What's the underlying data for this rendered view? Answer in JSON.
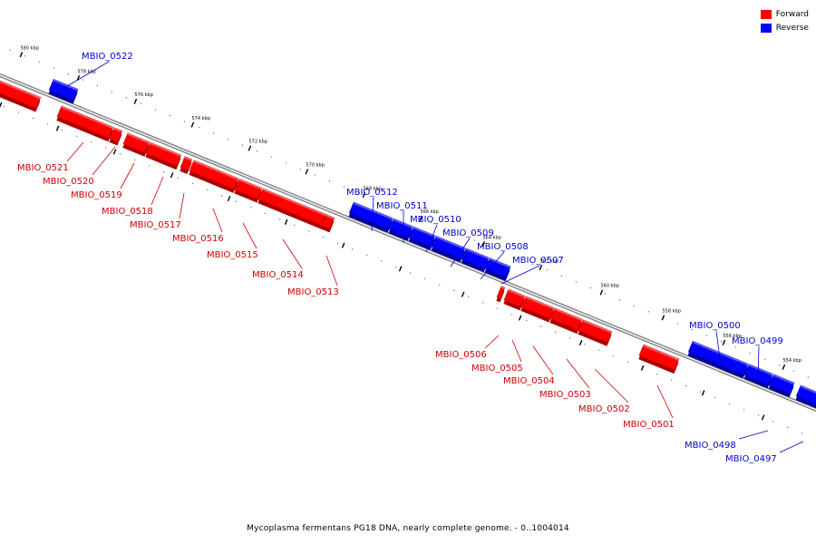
{
  "caption": "Mycoplasma fermentans PG18 DNA, nearly complete genome. - 0..1004014",
  "legend": [
    {
      "label": "Forward",
      "color": "#ff0000"
    },
    {
      "label": "Reverse",
      "color": "#0000ff"
    }
  ],
  "colors": {
    "forward": "#ff0000",
    "reverse": "#0000ff",
    "axis": "#888888"
  },
  "ticks": [
    "580 kbp",
    "578 kbp",
    "576 kbp",
    "574 kbp",
    "572 kbp",
    "570 kbp",
    "568 kbp",
    "566 kbp",
    "564 kbp",
    "562 kbp",
    "560 kbp",
    "558 kbp",
    "556 kbp",
    "554 kbp"
  ],
  "genes": [
    {
      "name": "MBIO_0522",
      "strand": "reverse"
    },
    {
      "name": "MBIO_0521",
      "strand": "forward"
    },
    {
      "name": "MBIO_0520",
      "strand": "forward"
    },
    {
      "name": "MBIO_0519",
      "strand": "forward"
    },
    {
      "name": "MBIO_0518",
      "strand": "forward"
    },
    {
      "name": "MBIO_0517",
      "strand": "forward"
    },
    {
      "name": "MBIO_0516",
      "strand": "forward"
    },
    {
      "name": "MBIO_0515",
      "strand": "forward"
    },
    {
      "name": "MBIO_0514",
      "strand": "forward"
    },
    {
      "name": "MBIO_0513",
      "strand": "forward"
    },
    {
      "name": "MBIO_0512",
      "strand": "reverse"
    },
    {
      "name": "MBIO_0511",
      "strand": "reverse"
    },
    {
      "name": "MBIO_0510",
      "strand": "reverse"
    },
    {
      "name": "MBIO_0509",
      "strand": "reverse"
    },
    {
      "name": "MBIO_0508",
      "strand": "reverse"
    },
    {
      "name": "MBIO_0507",
      "strand": "reverse"
    },
    {
      "name": "MBIO_0506",
      "strand": "forward"
    },
    {
      "name": "MBIO_0505",
      "strand": "forward"
    },
    {
      "name": "MBIO_0504",
      "strand": "forward"
    },
    {
      "name": "MBIO_0503",
      "strand": "forward"
    },
    {
      "name": "MBIO_0502",
      "strand": "forward"
    },
    {
      "name": "MBIO_0501",
      "strand": "forward"
    },
    {
      "name": "MBIO_0500",
      "strand": "reverse"
    },
    {
      "name": "MBIO_0499",
      "strand": "reverse"
    },
    {
      "name": "MBIO_0498",
      "strand": "reverse"
    },
    {
      "name": "MBIO_0497",
      "strand": "reverse"
    }
  ]
}
